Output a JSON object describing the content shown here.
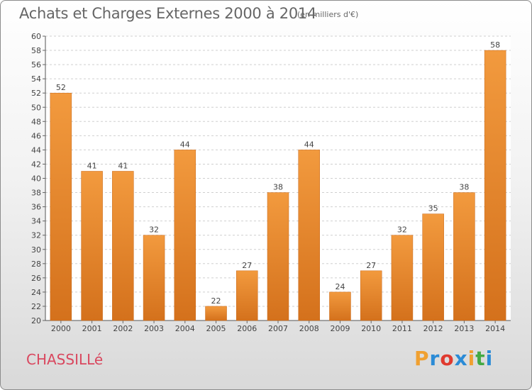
{
  "header": {
    "title": "Achats et Charges Externes 2000 à 2014",
    "subtitle": "(en milliers d'€)"
  },
  "footer": {
    "commune": "CHASSILLé",
    "brand": "Proxiti",
    "brand_colors": [
      "#f0a030",
      "#2b8bd6",
      "#e03a2f",
      "#2b8bd6",
      "#f0a030",
      "#44aa44",
      "#2b8bd6"
    ]
  },
  "chart_data": {
    "type": "bar",
    "title": "Achats et Charges Externes 2000 à 2014",
    "subtitle": "(en milliers d'€)",
    "categories": [
      "2000",
      "2001",
      "2002",
      "2003",
      "2004",
      "2005",
      "2006",
      "2007",
      "2008",
      "2009",
      "2010",
      "2011",
      "2012",
      "2013",
      "2014"
    ],
    "values": [
      52,
      41,
      41,
      32,
      44,
      22,
      27,
      38,
      44,
      24,
      27,
      32,
      35,
      38,
      58
    ],
    "ylim": [
      20,
      60
    ],
    "ytick_step": 2,
    "grid": true,
    "bar_color": "#f29a3e",
    "bar_color_dark": "#d4711c",
    "xlabel": "",
    "ylabel": ""
  }
}
